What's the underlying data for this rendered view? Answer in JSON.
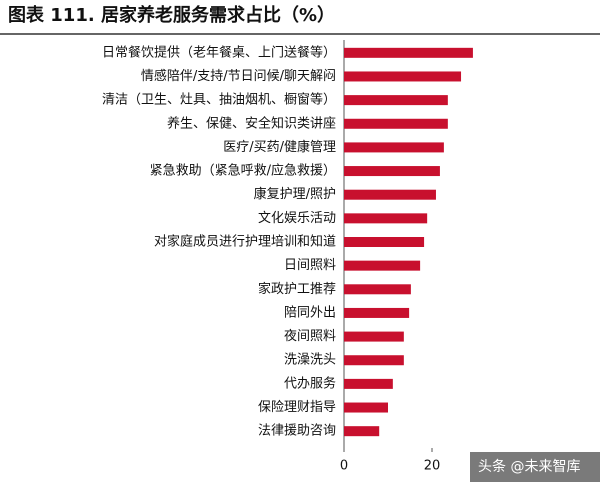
{
  "chart_data": {
    "type": "bar",
    "orientation": "horizontal",
    "title": "图表 111.  居家养老服务需求占比（%）",
    "watermark": "头条 @未来智库",
    "categories": [
      "日常餐饮提供（老年餐桌、上门送餐等）",
      "情感陪伴/支持/节日问候/聊天解闷",
      "清洁（卫生、灶具、抽油烟机、橱窗等）",
      "养生、保健、安全知识类讲座",
      "医疗/买药/健康管理",
      "紧急救助（紧急呼救/应急救援）",
      "康复护理/照护",
      "文化娱乐活动",
      "对家庭成员进行护理培训和知道",
      "日间照料",
      "家政护工推荐",
      "陪同外出",
      "夜间照料",
      "洗澡洗头",
      "代办服务",
      "保险理财指导",
      "法律援助咨询"
    ],
    "values": [
      29.3,
      26.6,
      23.6,
      23.6,
      22.7,
      21.8,
      20.9,
      18.9,
      18.2,
      17.3,
      15.2,
      14.8,
      13.6,
      13.6,
      11.1,
      10.0,
      8.0
    ],
    "color": "#c8102e",
    "xlim": [
      0,
      35
    ],
    "xticks": [
      0,
      20
    ]
  }
}
